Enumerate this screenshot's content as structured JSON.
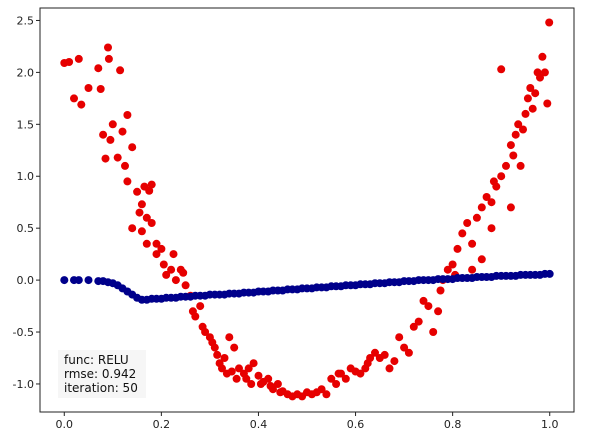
{
  "chart_data": {
    "type": "scatter",
    "title": "",
    "xlabel": "",
    "ylabel": "",
    "xlim": [
      -0.05,
      1.05
    ],
    "ylim": [
      -1.27,
      2.62
    ],
    "xticks": [
      "0.0",
      "0.2",
      "0.4",
      "0.6",
      "0.8",
      "1.0"
    ],
    "yticks": [
      "-1.0",
      "-0.5",
      "0.0",
      "0.5",
      "1.0",
      "1.5",
      "2.0",
      "2.5"
    ],
    "grid": false,
    "annotation": {
      "line1": "func: RELU",
      "line2": "rmse: 0.942",
      "line3": "iteration: 50"
    },
    "series": [
      {
        "color": "#e60000",
        "points": [
          [
            0.0,
            2.09
          ],
          [
            0.01,
            2.1
          ],
          [
            0.02,
            1.75
          ],
          [
            0.03,
            2.13
          ],
          [
            0.035,
            1.69
          ],
          [
            0.05,
            1.85
          ],
          [
            0.07,
            2.04
          ],
          [
            0.075,
            1.84
          ],
          [
            0.08,
            1.4
          ],
          [
            0.085,
            1.17
          ],
          [
            0.09,
            2.24
          ],
          [
            0.092,
            2.13
          ],
          [
            0.095,
            1.35
          ],
          [
            0.1,
            1.5
          ],
          [
            0.11,
            1.18
          ],
          [
            0.115,
            2.02
          ],
          [
            0.12,
            1.43
          ],
          [
            0.125,
            1.1
          ],
          [
            0.13,
            0.95
          ],
          [
            0.13,
            1.59
          ],
          [
            0.14,
            1.28
          ],
          [
            0.14,
            0.5
          ],
          [
            0.15,
            0.85
          ],
          [
            0.155,
            0.65
          ],
          [
            0.16,
            0.73
          ],
          [
            0.16,
            0.47
          ],
          [
            0.165,
            0.9
          ],
          [
            0.17,
            0.35
          ],
          [
            0.17,
            0.6
          ],
          [
            0.175,
            0.86
          ],
          [
            0.18,
            0.92
          ],
          [
            0.18,
            0.55
          ],
          [
            0.19,
            0.35
          ],
          [
            0.19,
            0.25
          ],
          [
            0.2,
            0.3
          ],
          [
            0.205,
            0.15
          ],
          [
            0.21,
            0.05
          ],
          [
            0.22,
            0.1
          ],
          [
            0.225,
            0.25
          ],
          [
            0.23,
            0.0
          ],
          [
            0.24,
            0.1
          ],
          [
            0.245,
            0.07
          ],
          [
            0.25,
            -0.05
          ],
          [
            0.26,
            -0.15
          ],
          [
            0.265,
            -0.3
          ],
          [
            0.27,
            -0.35
          ],
          [
            0.28,
            -0.25
          ],
          [
            0.285,
            -0.45
          ],
          [
            0.29,
            -0.5
          ],
          [
            0.3,
            -0.55
          ],
          [
            0.305,
            -0.6
          ],
          [
            0.31,
            -0.65
          ],
          [
            0.315,
            -0.72
          ],
          [
            0.32,
            -0.8
          ],
          [
            0.325,
            -0.85
          ],
          [
            0.33,
            -0.75
          ],
          [
            0.335,
            -0.9
          ],
          [
            0.34,
            -0.55
          ],
          [
            0.345,
            -0.88
          ],
          [
            0.35,
            -0.65
          ],
          [
            0.355,
            -0.95
          ],
          [
            0.36,
            -0.85
          ],
          [
            0.37,
            -0.9
          ],
          [
            0.375,
            -0.95
          ],
          [
            0.38,
            -0.85
          ],
          [
            0.385,
            -1.0
          ],
          [
            0.39,
            -0.8
          ],
          [
            0.4,
            -0.92
          ],
          [
            0.405,
            -1.0
          ],
          [
            0.41,
            -0.98
          ],
          [
            0.42,
            -0.95
          ],
          [
            0.425,
            -1.02
          ],
          [
            0.43,
            -1.05
          ],
          [
            0.44,
            -1.0
          ],
          [
            0.445,
            -1.08
          ],
          [
            0.45,
            -1.07
          ],
          [
            0.46,
            -1.1
          ],
          [
            0.47,
            -1.12
          ],
          [
            0.48,
            -1.1
          ],
          [
            0.49,
            -1.12
          ],
          [
            0.5,
            -1.08
          ],
          [
            0.51,
            -1.1
          ],
          [
            0.52,
            -1.08
          ],
          [
            0.53,
            -1.05
          ],
          [
            0.54,
            -1.1
          ],
          [
            0.55,
            -0.95
          ],
          [
            0.56,
            -1.0
          ],
          [
            0.565,
            -0.9
          ],
          [
            0.57,
            -0.9
          ],
          [
            0.58,
            -0.95
          ],
          [
            0.59,
            -0.85
          ],
          [
            0.6,
            -0.88
          ],
          [
            0.61,
            -0.9
          ],
          [
            0.62,
            -0.85
          ],
          [
            0.625,
            -0.8
          ],
          [
            0.63,
            -0.75
          ],
          [
            0.64,
            -0.7
          ],
          [
            0.65,
            -0.75
          ],
          [
            0.66,
            -0.72
          ],
          [
            0.67,
            -0.85
          ],
          [
            0.68,
            -0.78
          ],
          [
            0.69,
            -0.55
          ],
          [
            0.7,
            -0.65
          ],
          [
            0.71,
            -0.7
          ],
          [
            0.72,
            -0.45
          ],
          [
            0.73,
            -0.4
          ],
          [
            0.74,
            -0.2
          ],
          [
            0.75,
            -0.25
          ],
          [
            0.76,
            -0.5
          ],
          [
            0.77,
            -0.3
          ],
          [
            0.775,
            -0.1
          ],
          [
            0.78,
            0.0
          ],
          [
            0.79,
            0.1
          ],
          [
            0.8,
            0.15
          ],
          [
            0.805,
            0.05
          ],
          [
            0.81,
            0.3
          ],
          [
            0.82,
            0.45
          ],
          [
            0.83,
            0.55
          ],
          [
            0.84,
            0.35
          ],
          [
            0.85,
            0.6
          ],
          [
            0.86,
            0.7
          ],
          [
            0.87,
            0.8
          ],
          [
            0.88,
            0.75
          ],
          [
            0.885,
            0.95
          ],
          [
            0.89,
            0.9
          ],
          [
            0.9,
            1.0
          ],
          [
            0.91,
            1.1
          ],
          [
            0.92,
            1.3
          ],
          [
            0.925,
            1.2
          ],
          [
            0.93,
            1.4
          ],
          [
            0.935,
            1.5
          ],
          [
            0.94,
            1.1
          ],
          [
            0.945,
            1.45
          ],
          [
            0.95,
            1.6
          ],
          [
            0.955,
            1.75
          ],
          [
            0.96,
            1.85
          ],
          [
            0.965,
            1.65
          ],
          [
            0.97,
            1.8
          ],
          [
            0.975,
            2.0
          ],
          [
            0.98,
            1.95
          ],
          [
            0.985,
            2.15
          ],
          [
            0.99,
            2.0
          ],
          [
            0.995,
            1.7
          ],
          [
            0.999,
            2.48
          ],
          [
            0.9,
            2.03
          ],
          [
            0.92,
            0.7
          ],
          [
            0.88,
            0.5
          ],
          [
            0.86,
            0.2
          ],
          [
            0.84,
            0.1
          ]
        ]
      },
      {
        "color": "#00008b",
        "points": [
          [
            0.0,
            0.0
          ],
          [
            0.02,
            0.0
          ],
          [
            0.03,
            0.0
          ],
          [
            0.05,
            0.0
          ],
          [
            0.07,
            -0.01
          ],
          [
            0.08,
            -0.01
          ],
          [
            0.09,
            -0.02
          ],
          [
            0.1,
            -0.03
          ],
          [
            0.11,
            -0.05
          ],
          [
            0.12,
            -0.08
          ],
          [
            0.13,
            -0.11
          ],
          [
            0.14,
            -0.14
          ],
          [
            0.15,
            -0.17
          ],
          [
            0.16,
            -0.19
          ],
          [
            0.17,
            -0.19
          ],
          [
            0.18,
            -0.18
          ],
          [
            0.19,
            -0.18
          ],
          [
            0.2,
            -0.18
          ],
          [
            0.21,
            -0.17
          ],
          [
            0.22,
            -0.17
          ],
          [
            0.23,
            -0.17
          ],
          [
            0.24,
            -0.16
          ],
          [
            0.25,
            -0.16
          ],
          [
            0.26,
            -0.16
          ],
          [
            0.27,
            -0.15
          ],
          [
            0.28,
            -0.15
          ],
          [
            0.29,
            -0.15
          ],
          [
            0.3,
            -0.14
          ],
          [
            0.31,
            -0.14
          ],
          [
            0.32,
            -0.14
          ],
          [
            0.33,
            -0.14
          ],
          [
            0.34,
            -0.13
          ],
          [
            0.35,
            -0.13
          ],
          [
            0.36,
            -0.13
          ],
          [
            0.37,
            -0.12
          ],
          [
            0.38,
            -0.12
          ],
          [
            0.39,
            -0.12
          ],
          [
            0.4,
            -0.11
          ],
          [
            0.41,
            -0.11
          ],
          [
            0.42,
            -0.11
          ],
          [
            0.43,
            -0.1
          ],
          [
            0.44,
            -0.1
          ],
          [
            0.45,
            -0.1
          ],
          [
            0.46,
            -0.09
          ],
          [
            0.47,
            -0.09
          ],
          [
            0.48,
            -0.09
          ],
          [
            0.49,
            -0.08
          ],
          [
            0.5,
            -0.08
          ],
          [
            0.51,
            -0.08
          ],
          [
            0.52,
            -0.07
          ],
          [
            0.53,
            -0.07
          ],
          [
            0.54,
            -0.07
          ],
          [
            0.55,
            -0.06
          ],
          [
            0.56,
            -0.06
          ],
          [
            0.57,
            -0.06
          ],
          [
            0.58,
            -0.05
          ],
          [
            0.59,
            -0.05
          ],
          [
            0.6,
            -0.05
          ],
          [
            0.61,
            -0.04
          ],
          [
            0.62,
            -0.04
          ],
          [
            0.63,
            -0.04
          ],
          [
            0.64,
            -0.03
          ],
          [
            0.65,
            -0.03
          ],
          [
            0.66,
            -0.03
          ],
          [
            0.67,
            -0.02
          ],
          [
            0.68,
            -0.02
          ],
          [
            0.69,
            -0.02
          ],
          [
            0.7,
            -0.01
          ],
          [
            0.71,
            -0.01
          ],
          [
            0.72,
            -0.01
          ],
          [
            0.73,
            0.0
          ],
          [
            0.74,
            0.0
          ],
          [
            0.75,
            0.0
          ],
          [
            0.76,
            0.0
          ],
          [
            0.77,
            0.01
          ],
          [
            0.78,
            0.01
          ],
          [
            0.79,
            0.01
          ],
          [
            0.8,
            0.01
          ],
          [
            0.81,
            0.02
          ],
          [
            0.82,
            0.02
          ],
          [
            0.83,
            0.02
          ],
          [
            0.84,
            0.02
          ],
          [
            0.85,
            0.03
          ],
          [
            0.86,
            0.03
          ],
          [
            0.87,
            0.03
          ],
          [
            0.88,
            0.03
          ],
          [
            0.89,
            0.04
          ],
          [
            0.9,
            0.04
          ],
          [
            0.91,
            0.04
          ],
          [
            0.92,
            0.04
          ],
          [
            0.93,
            0.04
          ],
          [
            0.94,
            0.05
          ],
          [
            0.95,
            0.05
          ],
          [
            0.96,
            0.05
          ],
          [
            0.97,
            0.05
          ],
          [
            0.98,
            0.05
          ],
          [
            0.99,
            0.06
          ],
          [
            1.0,
            0.06
          ]
        ]
      }
    ]
  }
}
